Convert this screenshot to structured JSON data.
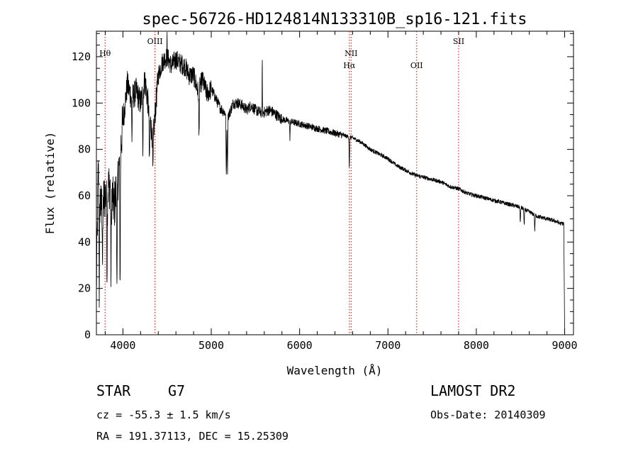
{
  "chart_data": {
    "type": "line",
    "title": "spec-56726-HD124814N133310B_sp16-121.fits",
    "xlabel": "Wavelength (Å)",
    "ylabel": "Flux (relative)",
    "xlim": [
      3700,
      9100
    ],
    "ylim": [
      0,
      131
    ],
    "x_ticks": [
      4000,
      5000,
      6000,
      7000,
      8000,
      9000
    ],
    "y_ticks": [
      0,
      20,
      40,
      60,
      80,
      100,
      120
    ],
    "line_color": "#000000",
    "marker_color": "#cc0000",
    "grid": false,
    "legend": "none",
    "lines": [
      {
        "name": "Hθ",
        "x": 3798,
        "label_pos": "high"
      },
      {
        "name": "OIII",
        "x": 4363,
        "label_pos": "top"
      },
      {
        "name": "NII",
        "x": 6583,
        "label_pos": "upper"
      },
      {
        "name": "Hα",
        "x": 6563,
        "label_pos": "lower"
      },
      {
        "name": "OII",
        "x": 7325,
        "label_pos": "lower"
      },
      {
        "name": "SII",
        "x": 7800,
        "label_pos": "top"
      }
    ],
    "continuum": [
      [
        3700,
        20
      ],
      [
        3720,
        70
      ],
      [
        3750,
        55
      ],
      [
        3800,
        60
      ],
      [
        3850,
        65
      ],
      [
        3900,
        55
      ],
      [
        3950,
        70
      ],
      [
        4000,
        92
      ],
      [
        4050,
        108
      ],
      [
        4100,
        102
      ],
      [
        4150,
        105
      ],
      [
        4200,
        100
      ],
      [
        4250,
        110
      ],
      [
        4300,
        95
      ],
      [
        4340,
        84
      ],
      [
        4400,
        112
      ],
      [
        4450,
        118
      ],
      [
        4500,
        120
      ],
      [
        4550,
        116
      ],
      [
        4600,
        119
      ],
      [
        4650,
        117
      ],
      [
        4700,
        116
      ],
      [
        4750,
        112
      ],
      [
        4800,
        112
      ],
      [
        4850,
        105
      ],
      [
        4900,
        110
      ],
      [
        4950,
        104
      ],
      [
        5000,
        106
      ],
      [
        5050,
        102
      ],
      [
        5100,
        98
      ],
      [
        5150,
        96
      ],
      [
        5200,
        95
      ],
      [
        5250,
        100
      ],
      [
        5300,
        100
      ],
      [
        5350,
        99
      ],
      [
        5400,
        97
      ],
      [
        5450,
        99
      ],
      [
        5500,
        97
      ],
      [
        5550,
        96
      ],
      [
        5600,
        96
      ],
      [
        5650,
        97
      ],
      [
        5700,
        96
      ],
      [
        5800,
        93
      ],
      [
        5900,
        92
      ],
      [
        6000,
        91
      ],
      [
        6100,
        90
      ],
      [
        6200,
        89
      ],
      [
        6300,
        88
      ],
      [
        6400,
        87
      ],
      [
        6500,
        86
      ],
      [
        6600,
        85
      ],
      [
        6700,
        83
      ],
      [
        6800,
        80
      ],
      [
        6900,
        78
      ],
      [
        7000,
        76
      ],
      [
        7100,
        73
      ],
      [
        7200,
        71
      ],
      [
        7300,
        69
      ],
      [
        7400,
        68
      ],
      [
        7500,
        67
      ],
      [
        7600,
        66
      ],
      [
        7700,
        64
      ],
      [
        7800,
        63
      ],
      [
        7900,
        61
      ],
      [
        8000,
        60
      ],
      [
        8100,
        59
      ],
      [
        8200,
        58
      ],
      [
        8300,
        57
      ],
      [
        8400,
        56
      ],
      [
        8500,
        55
      ],
      [
        8600,
        53
      ],
      [
        8700,
        51
      ],
      [
        8800,
        50
      ],
      [
        8900,
        49
      ],
      [
        8950,
        48
      ],
      [
        8990,
        48
      ],
      [
        9000,
        0
      ]
    ],
    "absorption_features": [
      {
        "x": 3733,
        "y": 15
      },
      {
        "x": 3770,
        "y": 30
      },
      {
        "x": 3820,
        "y": 28
      },
      {
        "x": 3865,
        "y": 25
      },
      {
        "x": 3933,
        "y": 15
      },
      {
        "x": 3968,
        "y": 22
      },
      {
        "x": 4102,
        "y": 85
      },
      {
        "x": 4226,
        "y": 82
      },
      {
        "x": 4300,
        "y": 72
      },
      {
        "x": 4340,
        "y": 68
      },
      {
        "x": 4861,
        "y": 85
      },
      {
        "x": 5170,
        "y": 67
      },
      {
        "x": 5183,
        "y": 70
      },
      {
        "x": 5890,
        "y": 85
      },
      {
        "x": 6563,
        "y": 72
      },
      {
        "x": 8498,
        "y": 48
      },
      {
        "x": 8542,
        "y": 47
      },
      {
        "x": 8662,
        "y": 45
      }
    ],
    "emission_spikes": [
      {
        "x": 4500,
        "y": 128
      },
      {
        "x": 5577,
        "y": 123
      }
    ]
  },
  "info": {
    "object_class": "STAR",
    "subclass": "G7",
    "survey": "LAMOST DR2",
    "cz_text": "cz = -55.3 ± 1.5 km/s",
    "obs_date_text": "Obs-Date: 20140309",
    "coords_text": "RA = 191.37113, DEC =  15.25309"
  }
}
